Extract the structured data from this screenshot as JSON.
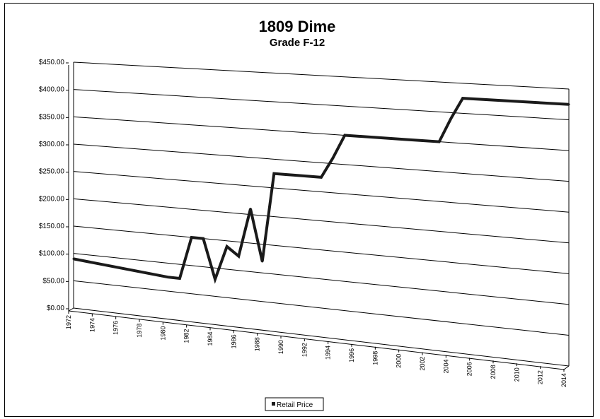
{
  "chart_data": {
    "type": "line",
    "title": "1809 Dime",
    "subtitle": "Grade F-12",
    "xlabel": "",
    "ylabel": "",
    "ylim": [
      0,
      450
    ],
    "y_ticks": [
      "$0.00",
      "$50.00",
      "$100.00",
      "$150.00",
      "$200.00",
      "$250.00",
      "$300.00",
      "$350.00",
      "$400.00",
      "$450.00"
    ],
    "x_ticks": [
      "1972",
      "1974",
      "1976",
      "1978",
      "1980",
      "1982",
      "1984",
      "1986",
      "1988",
      "1990",
      "1992",
      "1994",
      "1996",
      "1998",
      "2000",
      "2002",
      "2004",
      "2006",
      "2008",
      "2010",
      "2012",
      "2014"
    ],
    "x": [
      1972,
      1980,
      1981,
      1982,
      1983,
      1984,
      1985,
      1986,
      1987,
      1988,
      1989,
      1990,
      1991,
      1993,
      1994,
      1995,
      2000,
      2003,
      2004,
      2005,
      2014
    ],
    "series": [
      {
        "name": "Retail Price",
        "values": [
          90,
          75,
          75,
          150,
          150,
          80,
          140,
          125,
          210,
          120,
          275,
          275,
          275,
          275,
          310,
          350,
          350,
          350,
          390,
          425,
          425
        ]
      }
    ],
    "grid": true,
    "legend_position": "bottom",
    "line_color": "#1a1a1a"
  }
}
